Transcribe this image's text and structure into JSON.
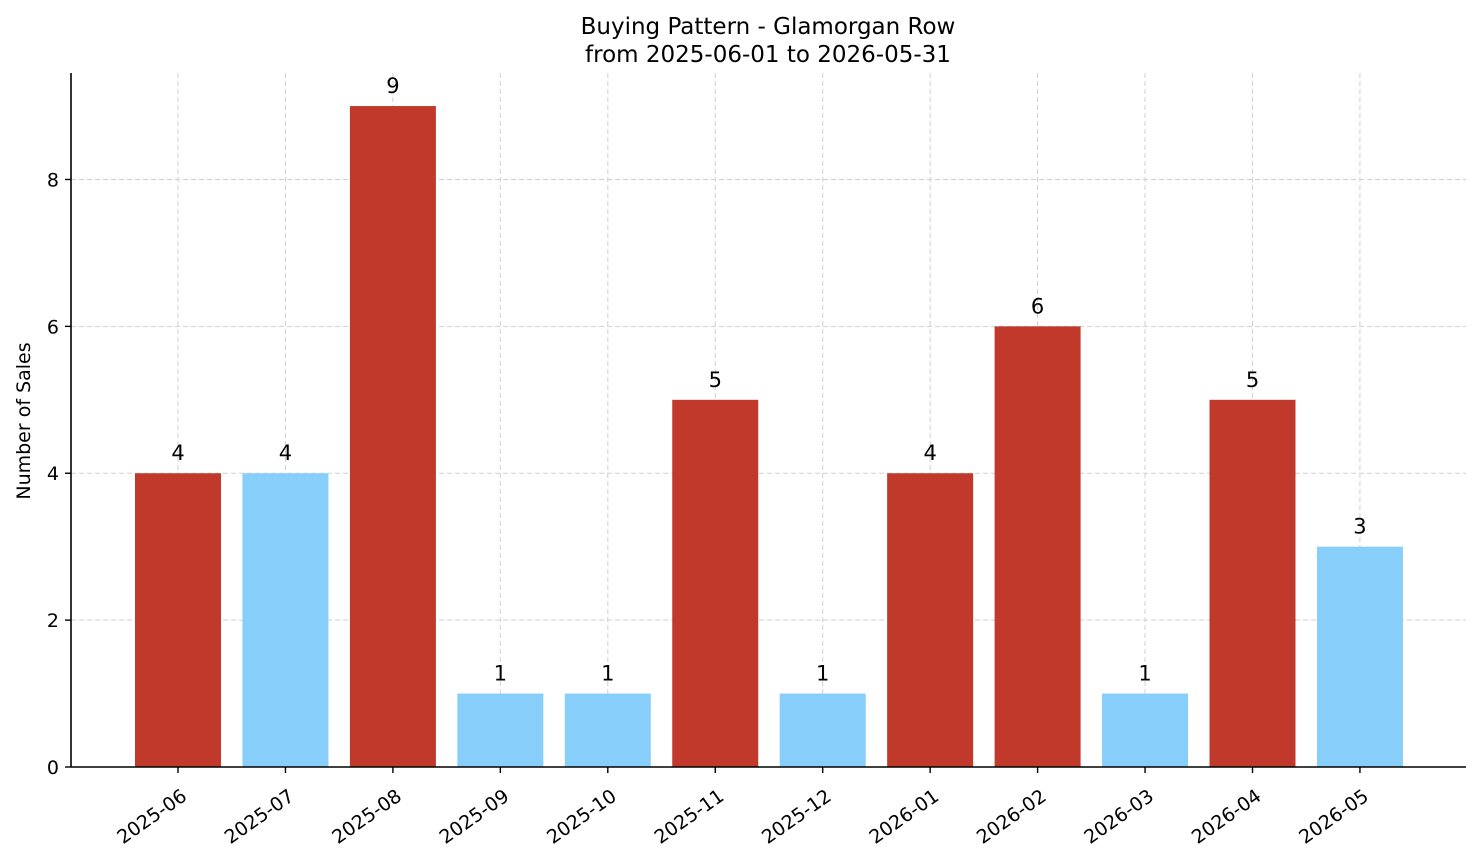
{
  "chart_data": {
    "type": "bar",
    "title": "Buying Pattern - Glamorgan Row",
    "subtitle": "from 2025-06-01 to 2026-05-31",
    "xlabel": "",
    "ylabel": "Number of Sales",
    "categories": [
      "2025-06",
      "2025-07",
      "2025-08",
      "2025-09",
      "2025-10",
      "2025-11",
      "2025-12",
      "2026-01",
      "2026-02",
      "2026-03",
      "2026-04",
      "2026-05"
    ],
    "values": [
      4,
      4,
      9,
      1,
      1,
      5,
      1,
      4,
      6,
      1,
      5,
      3
    ],
    "bar_colors": [
      "#c0392b",
      "#87cefa",
      "#c0392b",
      "#87cefa",
      "#87cefa",
      "#c0392b",
      "#87cefa",
      "#c0392b",
      "#c0392b",
      "#87cefa",
      "#c0392b",
      "#87cefa"
    ],
    "ylim": [
      0,
      9.45
    ],
    "yticks": [
      0,
      2,
      4,
      6,
      8
    ],
    "grid": true,
    "data_labels": true
  }
}
